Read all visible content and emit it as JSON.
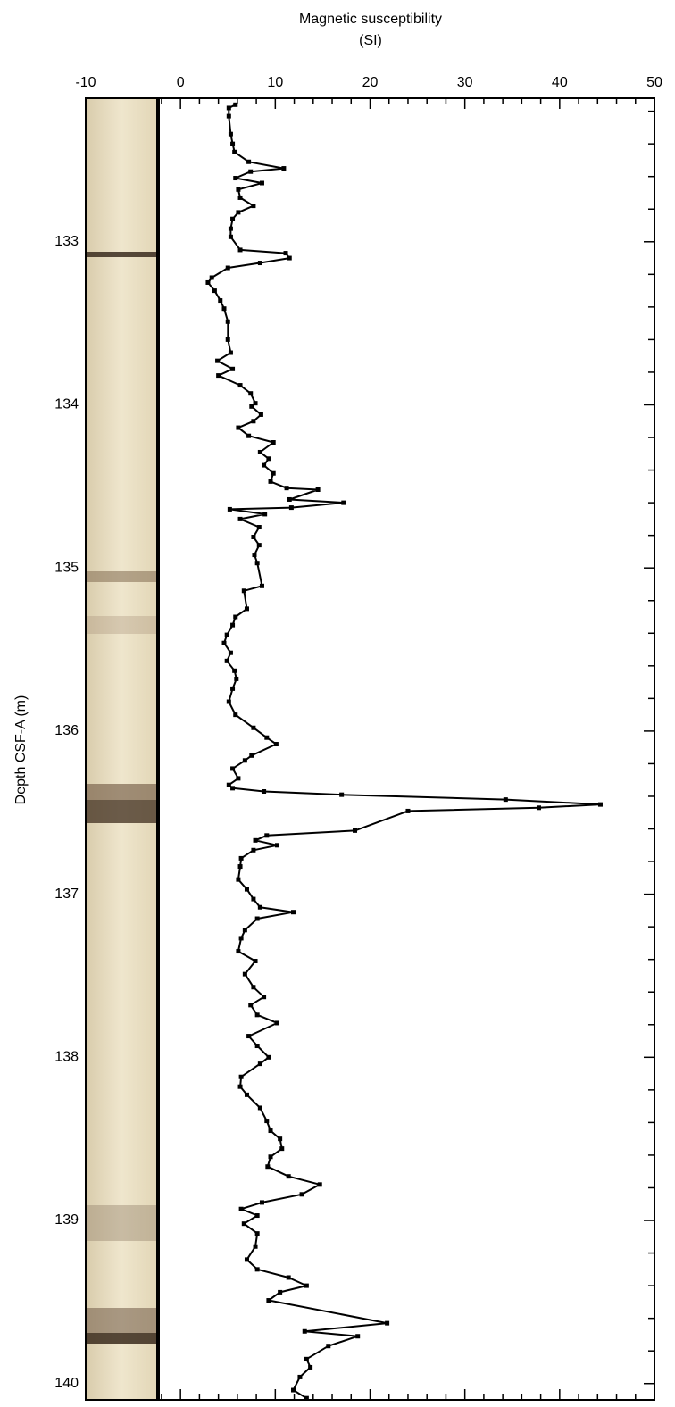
{
  "chart_data": {
    "type": "line",
    "title": "Magnetic susceptibility",
    "title_unit": "(SI)",
    "y_label": "Depth CSF-A (m)",
    "xlim": [
      -10,
      50
    ],
    "xticks": [
      -10,
      0,
      10,
      20,
      30,
      40,
      50
    ],
    "xminorticks": [
      -2,
      2,
      4,
      6,
      8,
      12,
      14,
      16,
      18,
      22,
      24,
      26,
      28,
      32,
      34,
      36,
      38,
      42,
      44,
      46,
      48
    ],
    "ylim": [
      132.12,
      140.1
    ],
    "yticks": [
      133,
      134,
      135,
      136,
      137,
      138,
      139,
      140
    ],
    "yminorticks": [
      132.2,
      132.4,
      132.6,
      132.8,
      133.2,
      133.4,
      133.6,
      133.8,
      134.2,
      134.4,
      134.6,
      134.8,
      135.2,
      135.4,
      135.6,
      135.8,
      136.2,
      136.4,
      136.6,
      136.8,
      137.2,
      137.4,
      137.6,
      137.8,
      138.2,
      138.4,
      138.6,
      138.8,
      139.2,
      139.4,
      139.6,
      139.8
    ],
    "y_inverted": true,
    "series": [
      {
        "color": "#000000",
        "depth": [
          132.16,
          132.18,
          132.23,
          132.34,
          132.4,
          132.45,
          132.51,
          132.55,
          132.57,
          132.61,
          132.64,
          132.68,
          132.73,
          132.78,
          132.82,
          132.86,
          132.92,
          132.97,
          133.05,
          133.07,
          133.1,
          133.13,
          133.16,
          133.22,
          133.25,
          133.3,
          133.36,
          133.41,
          133.49,
          133.6,
          133.68,
          133.73,
          133.78,
          133.82,
          133.88,
          133.93,
          133.99,
          134.01,
          134.06,
          134.1,
          134.14,
          134.19,
          134.23,
          134.29,
          134.33,
          134.37,
          134.42,
          134.47,
          134.51,
          134.52,
          134.58,
          134.6,
          134.63,
          134.64,
          134.67,
          134.7,
          134.75,
          134.81,
          134.86,
          134.92,
          134.97,
          135.11,
          135.14,
          135.25,
          135.3,
          135.35,
          135.41,
          135.46,
          135.52,
          135.57,
          135.63,
          135.68,
          135.74,
          135.82,
          135.9,
          135.98,
          136.04,
          136.08,
          136.15,
          136.18,
          136.23,
          136.29,
          136.33,
          136.35,
          136.37,
          136.39,
          136.42,
          136.45,
          136.47,
          136.49,
          136.61,
          136.64,
          136.67,
          136.7,
          136.73,
          136.78,
          136.83,
          136.91,
          136.97,
          137.03,
          137.08,
          137.11,
          137.15,
          137.22,
          137.27,
          137.35,
          137.41,
          137.49,
          137.57,
          137.63,
          137.68,
          137.74,
          137.79,
          137.87,
          137.93,
          138.0,
          138.04,
          138.12,
          138.18,
          138.23,
          138.31,
          138.39,
          138.45,
          138.5,
          138.56,
          138.61,
          138.67,
          138.73,
          138.78,
          138.84,
          138.89,
          138.93,
          138.97,
          139.02,
          139.08,
          139.16,
          139.24,
          139.3,
          139.35,
          139.4,
          139.44,
          139.49,
          139.63,
          139.68,
          139.71,
          139.77,
          139.85,
          139.9,
          139.96,
          140.04,
          140.09
        ],
        "values": [
          5.8,
          5.1,
          5.1,
          5.3,
          5.5,
          5.7,
          7.2,
          10.9,
          7.4,
          5.8,
          8.6,
          6.1,
          6.3,
          7.7,
          6.1,
          5.5,
          5.3,
          5.3,
          6.3,
          11.1,
          11.5,
          8.4,
          5.0,
          3.3,
          2.9,
          3.6,
          4.2,
          4.6,
          5.0,
          5.0,
          5.3,
          3.9,
          5.5,
          4.0,
          6.3,
          7.4,
          7.9,
          7.5,
          8.5,
          7.7,
          6.1,
          7.2,
          9.8,
          8.4,
          9.3,
          8.8,
          9.8,
          9.5,
          11.2,
          14.5,
          11.5,
          17.2,
          11.7,
          5.2,
          8.9,
          6.3,
          8.3,
          7.7,
          8.3,
          7.8,
          8.1,
          8.6,
          6.7,
          7.0,
          5.8,
          5.5,
          4.9,
          4.6,
          5.3,
          4.9,
          5.7,
          5.9,
          5.5,
          5.1,
          5.8,
          7.7,
          9.1,
          10.1,
          7.5,
          6.8,
          5.5,
          6.1,
          5.1,
          5.5,
          8.8,
          17.0,
          34.3,
          44.3,
          37.8,
          24.0,
          18.4,
          9.1,
          7.9,
          10.2,
          7.7,
          6.4,
          6.3,
          6.1,
          7.0,
          7.7,
          8.4,
          11.9,
          8.1,
          6.8,
          6.4,
          6.1,
          7.9,
          6.8,
          7.7,
          8.8,
          7.4,
          8.1,
          10.2,
          7.2,
          8.1,
          9.3,
          8.4,
          6.4,
          6.3,
          7.0,
          8.4,
          9.1,
          9.5,
          10.5,
          10.7,
          9.5,
          9.2,
          11.4,
          14.7,
          12.8,
          8.6,
          6.4,
          8.1,
          6.7,
          8.1,
          7.9,
          7.0,
          8.1,
          11.4,
          13.3,
          10.5,
          9.3,
          21.8,
          13.1,
          18.7,
          15.6,
          13.3,
          13.7,
          12.6,
          11.9,
          13.3
        ]
      }
    ]
  }
}
